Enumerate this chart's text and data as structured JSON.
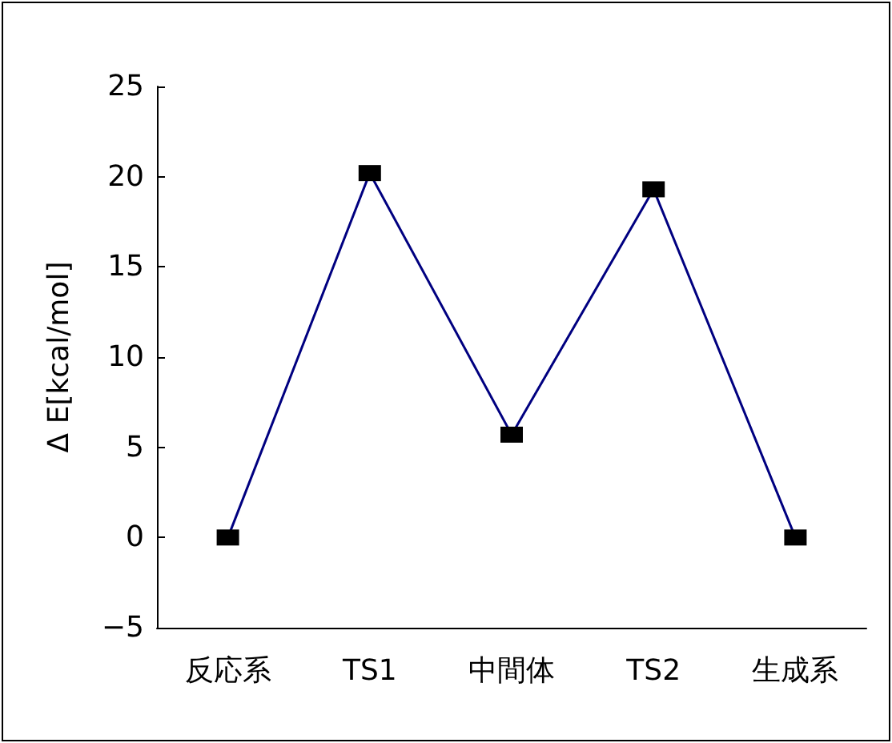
{
  "chart_data": {
    "type": "line",
    "ylabel": "Δ E[kcal/mol]",
    "categories": [
      "反応系",
      "TS1",
      "中間体",
      "TS2",
      "生成系"
    ],
    "series": [
      {
        "color": "#000080",
        "values": [
          0,
          20.2,
          5.7,
          19.3,
          0
        ]
      }
    ],
    "ylim": [
      -5,
      25
    ],
    "yticks": [
      -5,
      0,
      5,
      10,
      15,
      20,
      25
    ],
    "marker": "square"
  }
}
